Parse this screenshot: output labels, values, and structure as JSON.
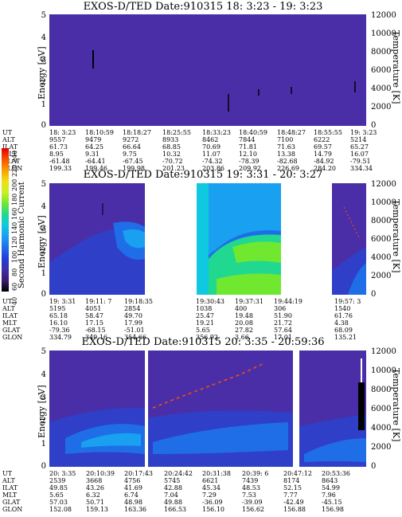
{
  "chart_data": [
    {
      "type": "heatmap",
      "title": "EXOS-D/TED    Date:910315  18: 3:23 - 19: 3:23",
      "ylabel": "Energy [eV]",
      "y2label": "Temperature [K]",
      "ylim": [
        0,
        5
      ],
      "y2lim": [
        0,
        12000
      ],
      "yticks": [
        "0",
        "1",
        "2",
        "3",
        "4",
        "5"
      ],
      "y2ticks": [
        "0",
        "2000",
        "4000",
        "6000",
        "8000",
        "10000",
        "12000"
      ],
      "orbit_labels": [
        "UT",
        "ALT",
        "ILAT",
        "MLT",
        "GLAT",
        "GLON"
      ],
      "orbit_columns": [
        [
          "18: 3:23",
          "9557",
          "61.73",
          "8.95",
          "-61.48",
          "199.33"
        ],
        [
          "18:10:59",
          "9479",
          "64.25",
          "9.31",
          "-64.41",
          "199.46"
        ],
        [
          "18:18:27",
          "9272",
          "66.64",
          "9.75",
          "-67.45",
          "199.98"
        ],
        [
          "18:25:55",
          "8933",
          "68.85",
          "10.32",
          "-70.72",
          "201.23"
        ],
        [
          "18:33:23",
          "8462",
          "70.69",
          "11.07",
          "-74.32",
          "203.86"
        ],
        [
          "18:40:59",
          "7844",
          "71.81",
          "12.10",
          "-78.39",
          "209.92"
        ],
        [
          "18:48:27",
          "7100",
          "71.63",
          "13.38",
          "-82.68",
          "226.69"
        ],
        [
          "18:55:55",
          "6222",
          "69.57",
          "14.79",
          "-84.92",
          "284.20"
        ],
        [
          "19: 3:23",
          "5214",
          "65.27",
          "16.07",
          "-79.51",
          "334.34"
        ]
      ]
    },
    {
      "type": "heatmap",
      "title": "EXOS-D/TED    Date:910315  19: 3:31 - 20: 3:27",
      "ylabel": "Energy [eV]",
      "y2label": "Temperature [K]",
      "ylim": [
        0,
        5
      ],
      "y2lim": [
        0,
        12000
      ],
      "yticks": [
        "0",
        "1",
        "2",
        "3",
        "4",
        "5"
      ],
      "y2ticks": [
        "0",
        "2000",
        "4000",
        "6000",
        "8000",
        "10000",
        "12000"
      ],
      "colorbar": {
        "label": "Second Harmonic Current",
        "ticks": [
          "40",
          "60",
          "80",
          "100",
          "120",
          "140",
          "160",
          "180",
          "200",
          "220",
          "240"
        ],
        "colors": [
          "#000000",
          "#3a1a70",
          "#3c2fa8",
          "#1f3fd8",
          "#1f6ee8",
          "#19a0f0",
          "#10c8e0",
          "#20d890",
          "#70e830",
          "#c8f020",
          "#f0e010",
          "#f8a000",
          "#f85000",
          "#e00000"
        ]
      },
      "orbit_labels": [
        "UT",
        "ALT",
        "ILAT",
        "MLT",
        "GLAT",
        "GLON"
      ],
      "orbit_columns": [
        [
          "19: 3:31",
          "5195",
          "65.18",
          "16.10",
          "-79.36",
          "334.79"
        ],
        [
          "19:11: 7",
          "4051",
          "58.47",
          "17.15",
          "-68.15",
          "349.16"
        ],
        [
          "19:18:35",
          "2854",
          "49.70",
          "17.99",
          "-51.01",
          "354.66"
        ],
        [
          "19:30:43",
          "1038",
          "25.47",
          "19.21",
          "5.65",
          "356.92"
        ],
        [
          "19:37:31",
          "400",
          "19.48",
          "20.08",
          "27.82",
          "3.66"
        ],
        [
          "19:44:19",
          "306",
          "51.90",
          "21.72",
          "57.64",
          "17.01"
        ],
        [
          "19:57: 3",
          "1540",
          "61.76",
          "4.38",
          "68.09",
          "135.21"
        ]
      ]
    },
    {
      "type": "heatmap",
      "title": "EXOS-D/TED    Date:910315  20: 3:35 - 20:59:36",
      "ylabel": "Energy [eV]",
      "y2label": "Temperature [K]",
      "ylim": [
        0,
        5
      ],
      "y2lim": [
        0,
        12000
      ],
      "yticks": [
        "0",
        "1",
        "2",
        "3",
        "4",
        "5"
      ],
      "y2ticks": [
        "0",
        "2000",
        "4000",
        "6000",
        "8000",
        "10000",
        "12000"
      ],
      "orbit_labels": [
        "UT",
        "ALT",
        "ILAT",
        "MLT",
        "GLAT",
        "GLON"
      ],
      "orbit_columns": [
        [
          "20: 3:35",
          "2539",
          "49.85",
          "5.65",
          "57.03",
          "152.08"
        ],
        [
          "20:10:39",
          "3668",
          "43.26",
          "6.32",
          "50.71",
          "159.13"
        ],
        [
          "20:17:43",
          "4756",
          "41.69",
          "6.74",
          "48.98",
          "163.36"
        ],
        [
          "20:24:42",
          "5745",
          "42.88",
          "7.04",
          "49.88",
          "166.53"
        ],
        [
          "20:31:38",
          "6621",
          "45.34",
          "7.29",
          "-36.09",
          "156.10"
        ],
        [
          "20:39: 6",
          "7439",
          "48.53",
          "7.53",
          "-39.09",
          "156.62"
        ],
        [
          "20:47:12",
          "8174",
          "52.15",
          "7.77",
          "-42.49",
          "156.88"
        ],
        [
          "20:53:36",
          "8643",
          "54.99",
          "7.96",
          "-45.15",
          "156.98"
        ]
      ]
    }
  ]
}
